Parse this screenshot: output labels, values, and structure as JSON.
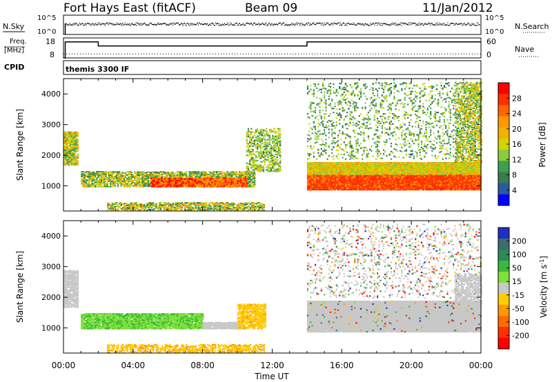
{
  "header": {
    "station": "Fort Hays East (fitACF)",
    "beam": "Beam 09",
    "date": "11/Jan/2012"
  },
  "sky_panel": {
    "left_label": "N.Sky",
    "right_label": "N.Search",
    "left_ticks": [
      "10^5",
      "10^0"
    ],
    "right_ticks": [
      "10^5",
      "10^0"
    ]
  },
  "freq_panel": {
    "left_label_line1": "Freq.",
    "left_label_line2": "[MHz]",
    "right_label": "Nave",
    "left_ticks": [
      "18",
      "8"
    ],
    "right_ticks": [
      "60",
      "0"
    ]
  },
  "cpid_panel": {
    "label": "CPID",
    "value": "themis 3300 IF"
  },
  "power_colorbar": {
    "label": "Power [dB]",
    "ticks": [
      "28",
      "24",
      "20",
      "16",
      "12",
      "8",
      "4"
    ],
    "colors": [
      "#ff0000",
      "#ff3000",
      "#ff6600",
      "#ff9900",
      "#f2b200",
      "#d4d400",
      "#8ccc3c",
      "#3ca050",
      "#3c7a50",
      "#2a5aa0",
      "#0000ff"
    ]
  },
  "velocity_colorbar": {
    "label": "Velocity [m s^-1]",
    "ticks": [
      "200",
      "100",
      "50",
      "15",
      "-15",
      "-50",
      "-100",
      "-200"
    ],
    "colors": [
      "#2030c0",
      "#3c6e6e",
      "#2e8b57",
      "#3cb83c",
      "#7ee03c",
      "#c8c8c8",
      "#ffcc00",
      "#ff9900",
      "#ff6a00",
      "#ff3000",
      "#ff0000"
    ]
  },
  "x_axis": {
    "label": "Time UT",
    "ticks": [
      "00:00",
      "04:00",
      "08:00",
      "12:00",
      "16:00",
      "20:00",
      "00:00"
    ]
  },
  "y_axis": {
    "label": "Slant Range [km]",
    "ticks": [
      "4000",
      "3000",
      "2000",
      "1000"
    ]
  },
  "chart_data": [
    {
      "type": "line",
      "name": "N.Sky / N.Search",
      "x_range_hours": [
        0,
        24
      ],
      "y_scale": "log",
      "y_range": [
        1,
        100000
      ],
      "series": [
        {
          "x": [
            0,
            0.1,
            24
          ],
          "y": [
            1,
            5000,
            5000
          ]
        }
      ]
    },
    {
      "type": "line",
      "name": "Freq / Nave",
      "x_range_hours": [
        0,
        24
      ],
      "y_range_left_mhz": [
        8,
        18
      ],
      "y_range_right_nave": [
        0,
        60
      ],
      "series": [
        {
          "x": [
            0,
            0.1,
            0.1,
            2,
            2,
            14,
            14,
            24
          ],
          "y": [
            8,
            8,
            16,
            16,
            14,
            14,
            16,
            16
          ]
        },
        {
          "x": [
            0,
            24
          ],
          "y": [
            10,
            10
          ],
          "dotted": true
        }
      ]
    },
    {
      "type": "heatmap",
      "name": "Power",
      "x_range_hours": [
        0,
        24
      ],
      "y_range_km": [
        180,
        4500
      ],
      "value_units": "dB",
      "features": [
        {
          "region": "near-range echoes 00:00-01:00",
          "x": [
            0,
            0.8
          ],
          "y": [
            1700,
            2800
          ],
          "level": 14
        },
        {
          "region": "E-region band",
          "x": [
            1,
            11
          ],
          "y": [
            1000,
            1500
          ],
          "level": 20
        },
        {
          "region": "strong band 05:00-10:30",
          "x": [
            5,
            10.5
          ],
          "y": [
            1000,
            1300
          ],
          "level": 28
        },
        {
          "region": "low-range band",
          "x": [
            3,
            11
          ],
          "y": [
            250,
            450
          ],
          "level": 16
        },
        {
          "region": "main echo band 14:00-24:00",
          "x": [
            14,
            24
          ],
          "y": [
            900,
            1900
          ],
          "level": 26
        },
        {
          "region": "high-range scatter",
          "x": [
            14,
            24
          ],
          "y": [
            1800,
            4400
          ],
          "level": 8
        }
      ]
    },
    {
      "type": "heatmap",
      "name": "Velocity",
      "x_range_hours": [
        0,
        24
      ],
      "y_range_km": [
        180,
        4500
      ],
      "value_units": "m/s",
      "features": [
        {
          "region": "positive flow band",
          "x": [
            1,
            8
          ],
          "y": [
            1000,
            1500
          ],
          "level": 30
        },
        {
          "region": "ground scatter",
          "x": [
            8,
            10.3
          ],
          "y": [
            1000,
            1200
          ],
          "level": 0
        },
        {
          "region": "negative flow",
          "x": [
            10,
            11.5
          ],
          "y": [
            1000,
            1800
          ],
          "level": -40
        },
        {
          "region": "ground scatter band",
          "x": [
            14,
            24
          ],
          "y": [
            900,
            1900
          ],
          "level": 0
        }
      ]
    }
  ]
}
